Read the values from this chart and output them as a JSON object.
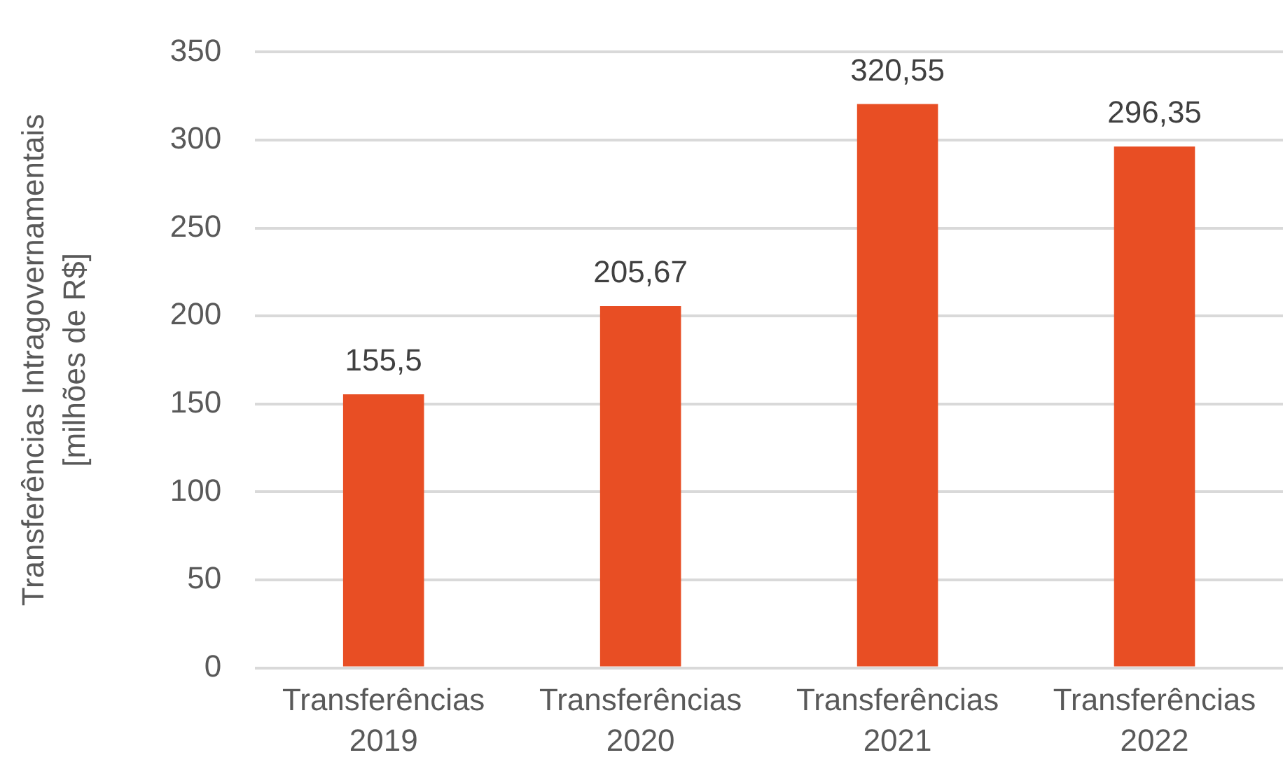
{
  "chart_data": {
    "type": "bar",
    "ylabel": "Transferências Intragovernamentais [milhões de R$]",
    "categories": [
      "Transferências 2019",
      "Transferências 2020",
      "Transferências 2021",
      "Transferências 2022"
    ],
    "values": [
      155.5,
      205.67,
      320.55,
      296.35
    ],
    "color": "#e84e24",
    "value_labels": [
      "155,5",
      "205,67",
      "320,55",
      "296,35"
    ],
    "ylim": [
      0,
      350
    ],
    "yticks": [
      0,
      50,
      100,
      150,
      200,
      250,
      300,
      350
    ],
    "grid": "y"
  }
}
